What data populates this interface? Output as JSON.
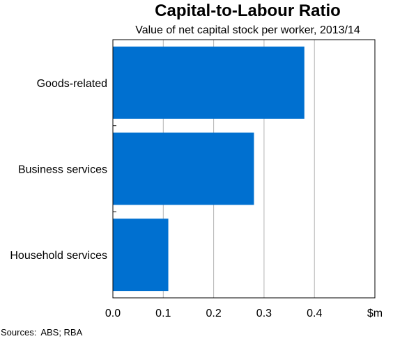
{
  "chart_data": {
    "type": "bar",
    "orientation": "horizontal",
    "title": "Capital-to-Labour Ratio",
    "subtitle": "Value of net capital stock per worker, 2013/14",
    "categories": [
      "Goods-related",
      "Business services",
      "Household services"
    ],
    "values": [
      0.38,
      0.28,
      0.11
    ],
    "x_ticks": [
      "0.0",
      "0.1",
      "0.2",
      "0.3",
      "0.4"
    ],
    "x_tick_values": [
      0.0,
      0.1,
      0.2,
      0.3,
      0.4
    ],
    "xlim": [
      0,
      0.52
    ],
    "unit_label": "$m",
    "grid": "vertical",
    "bar_color": "#0070D0"
  },
  "source": {
    "label": "Sources:",
    "text": "ABS; RBA"
  }
}
